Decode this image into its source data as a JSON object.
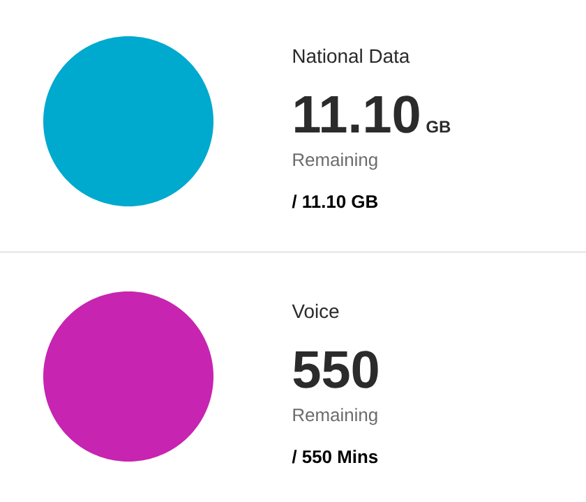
{
  "chart_data": [
    {
      "type": "pie",
      "title": "National Data",
      "categories": [
        null
      ],
      "values": [
        100
      ],
      "colors": [
        "#00a9ce"
      ],
      "annotations": [
        "11.10",
        "GB",
        "Remaining",
        "/ 11.10 GB"
      ]
    },
    {
      "type": "pie",
      "title": "Voice",
      "categories": [
        null
      ],
      "values": [
        100
      ],
      "colors": [
        "#c724b1"
      ],
      "annotations": [
        "550",
        "Remaining",
        "/ 550 Mins"
      ]
    }
  ]
}
